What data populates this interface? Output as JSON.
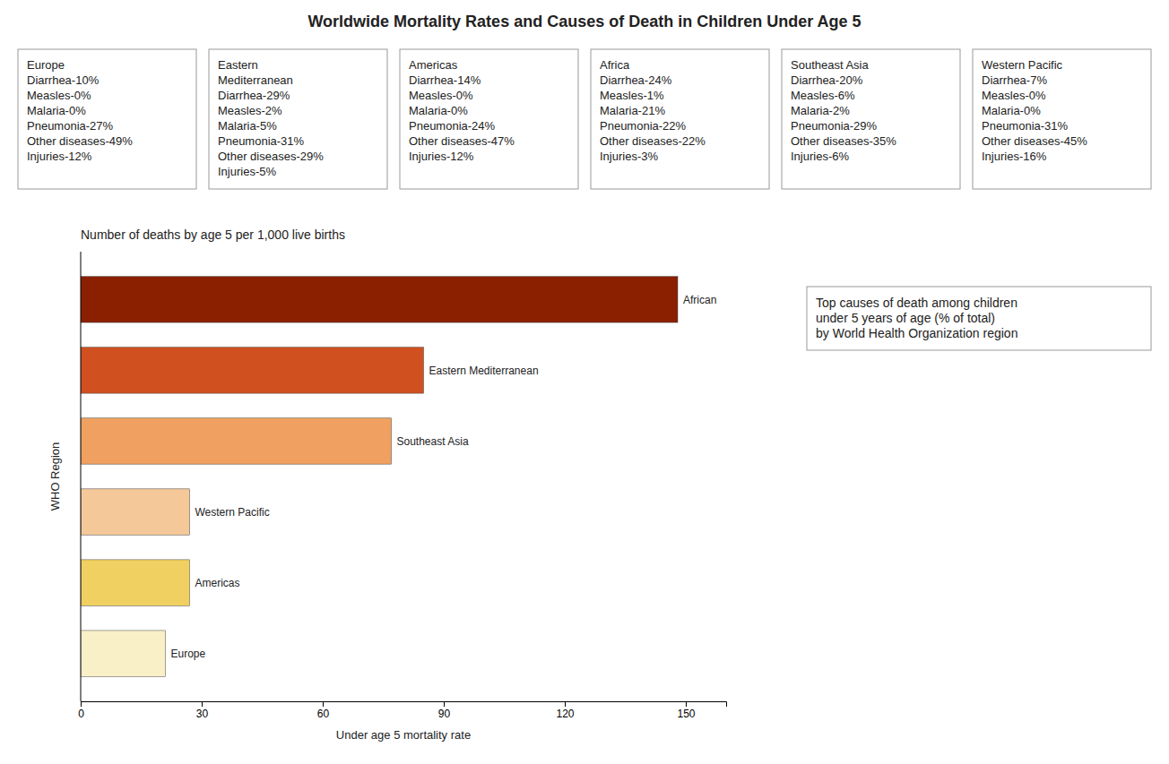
{
  "chart_data": {
    "type": "bar",
    "title": "Worldwide Mortality Rates and Causes of Death in Children Under Age 5",
    "subtitle": "Number of deaths by age 5 per 1,000 live births",
    "orientation": "horizontal",
    "x_label": "Under age 5 mortality rate",
    "y_label": "WHO Region",
    "categories": [
      "Europe",
      "Americas",
      "Western Pacific",
      "Southeast Asia",
      "Eastern Mediterranean",
      "African"
    ],
    "values": [
      21,
      27,
      27,
      77,
      85,
      148
    ],
    "colors": [
      "#faf0c8",
      "#f0d060",
      "#f5c89a",
      "#f0a060",
      "#d05020",
      "#8b2000"
    ],
    "xlim": [
      0,
      160
    ],
    "xticks": [
      0,
      30,
      60,
      90,
      120,
      150
    ],
    "grid": false,
    "annotations": [
      "Europe\nDiarrhea-10%\nMeasles-0%\nMalaria-0%\nPneumonia-27%\nOther diseases-49%\nInjuries-12%",
      "Eastern\nMediterranean\nDiarrhea-29%\nMeasles-2%\nMalaria-5%\nPneumonia-31%\nOther diseases-29%\nInjuries-5%",
      "Americas\nDiarrhea-14%\nMeasles-0%\nMalaria-0%\nPneumonia-24%\nOther diseases-47%\nInjuries-12%",
      "Africa\nDiarrhea-24%\nMeasles-1%\nMalaria-21%\nPneumonia-22%\nOther diseases-22%\nInjuries-3%",
      "Southeast Asia\nDiarrhea-20%\nMeasles-6%\nMalaria-2%\nPneumonia-29%\nOther diseases-35%\nInjuries-6%",
      "Western Pacific\nDiarrhea-7%\nMeasles-0%\nMalaria-0%\nPneumonia-31%\nOther diseases-45%\nInjuries-16%",
      "Top causes of death among children\nunder 5 years of age (% of total)\nby World Health Organization region"
    ]
  }
}
